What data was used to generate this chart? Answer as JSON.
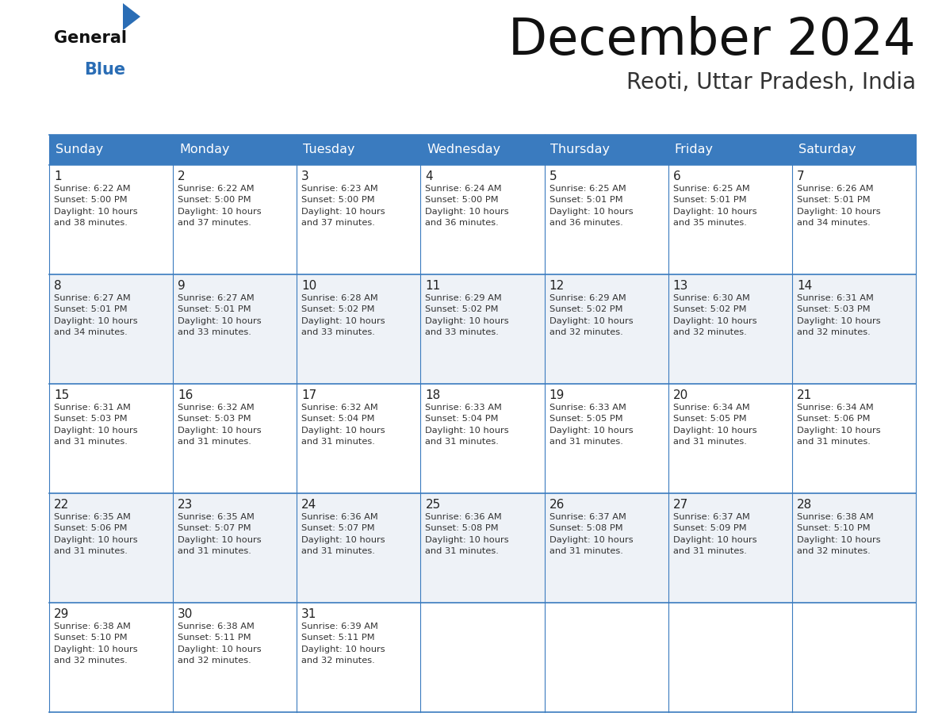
{
  "title": "December 2024",
  "subtitle": "Reoti, Uttar Pradesh, India",
  "days_of_week": [
    "Sunday",
    "Monday",
    "Tuesday",
    "Wednesday",
    "Thursday",
    "Friday",
    "Saturday"
  ],
  "header_bg_color": "#3a7bbf",
  "header_text_color": "#ffffff",
  "cell_bg_even": "#ffffff",
  "cell_bg_odd": "#eef2f7",
  "cell_border_color": "#3a7bbf",
  "day_number_color": "#222222",
  "cell_text_color": "#333333",
  "title_color": "#111111",
  "subtitle_color": "#333333",
  "logo_general_color": "#111111",
  "logo_blue_color": "#2a6db5",
  "calendar_data": [
    {
      "day": 1,
      "col": 0,
      "row": 0,
      "sunrise": "6:22 AM",
      "sunset": "5:00 PM",
      "daylight_hours": 10,
      "daylight_minutes": 38
    },
    {
      "day": 2,
      "col": 1,
      "row": 0,
      "sunrise": "6:22 AM",
      "sunset": "5:00 PM",
      "daylight_hours": 10,
      "daylight_minutes": 37
    },
    {
      "day": 3,
      "col": 2,
      "row": 0,
      "sunrise": "6:23 AM",
      "sunset": "5:00 PM",
      "daylight_hours": 10,
      "daylight_minutes": 37
    },
    {
      "day": 4,
      "col": 3,
      "row": 0,
      "sunrise": "6:24 AM",
      "sunset": "5:00 PM",
      "daylight_hours": 10,
      "daylight_minutes": 36
    },
    {
      "day": 5,
      "col": 4,
      "row": 0,
      "sunrise": "6:25 AM",
      "sunset": "5:01 PM",
      "daylight_hours": 10,
      "daylight_minutes": 36
    },
    {
      "day": 6,
      "col": 5,
      "row": 0,
      "sunrise": "6:25 AM",
      "sunset": "5:01 PM",
      "daylight_hours": 10,
      "daylight_minutes": 35
    },
    {
      "day": 7,
      "col": 6,
      "row": 0,
      "sunrise": "6:26 AM",
      "sunset": "5:01 PM",
      "daylight_hours": 10,
      "daylight_minutes": 34
    },
    {
      "day": 8,
      "col": 0,
      "row": 1,
      "sunrise": "6:27 AM",
      "sunset": "5:01 PM",
      "daylight_hours": 10,
      "daylight_minutes": 34
    },
    {
      "day": 9,
      "col": 1,
      "row": 1,
      "sunrise": "6:27 AM",
      "sunset": "5:01 PM",
      "daylight_hours": 10,
      "daylight_minutes": 33
    },
    {
      "day": 10,
      "col": 2,
      "row": 1,
      "sunrise": "6:28 AM",
      "sunset": "5:02 PM",
      "daylight_hours": 10,
      "daylight_minutes": 33
    },
    {
      "day": 11,
      "col": 3,
      "row": 1,
      "sunrise": "6:29 AM",
      "sunset": "5:02 PM",
      "daylight_hours": 10,
      "daylight_minutes": 33
    },
    {
      "day": 12,
      "col": 4,
      "row": 1,
      "sunrise": "6:29 AM",
      "sunset": "5:02 PM",
      "daylight_hours": 10,
      "daylight_minutes": 32
    },
    {
      "day": 13,
      "col": 5,
      "row": 1,
      "sunrise": "6:30 AM",
      "sunset": "5:02 PM",
      "daylight_hours": 10,
      "daylight_minutes": 32
    },
    {
      "day": 14,
      "col": 6,
      "row": 1,
      "sunrise": "6:31 AM",
      "sunset": "5:03 PM",
      "daylight_hours": 10,
      "daylight_minutes": 32
    },
    {
      "day": 15,
      "col": 0,
      "row": 2,
      "sunrise": "6:31 AM",
      "sunset": "5:03 PM",
      "daylight_hours": 10,
      "daylight_minutes": 31
    },
    {
      "day": 16,
      "col": 1,
      "row": 2,
      "sunrise": "6:32 AM",
      "sunset": "5:03 PM",
      "daylight_hours": 10,
      "daylight_minutes": 31
    },
    {
      "day": 17,
      "col": 2,
      "row": 2,
      "sunrise": "6:32 AM",
      "sunset": "5:04 PM",
      "daylight_hours": 10,
      "daylight_minutes": 31
    },
    {
      "day": 18,
      "col": 3,
      "row": 2,
      "sunrise": "6:33 AM",
      "sunset": "5:04 PM",
      "daylight_hours": 10,
      "daylight_minutes": 31
    },
    {
      "day": 19,
      "col": 4,
      "row": 2,
      "sunrise": "6:33 AM",
      "sunset": "5:05 PM",
      "daylight_hours": 10,
      "daylight_minutes": 31
    },
    {
      "day": 20,
      "col": 5,
      "row": 2,
      "sunrise": "6:34 AM",
      "sunset": "5:05 PM",
      "daylight_hours": 10,
      "daylight_minutes": 31
    },
    {
      "day": 21,
      "col": 6,
      "row": 2,
      "sunrise": "6:34 AM",
      "sunset": "5:06 PM",
      "daylight_hours": 10,
      "daylight_minutes": 31
    },
    {
      "day": 22,
      "col": 0,
      "row": 3,
      "sunrise": "6:35 AM",
      "sunset": "5:06 PM",
      "daylight_hours": 10,
      "daylight_minutes": 31
    },
    {
      "day": 23,
      "col": 1,
      "row": 3,
      "sunrise": "6:35 AM",
      "sunset": "5:07 PM",
      "daylight_hours": 10,
      "daylight_minutes": 31
    },
    {
      "day": 24,
      "col": 2,
      "row": 3,
      "sunrise": "6:36 AM",
      "sunset": "5:07 PM",
      "daylight_hours": 10,
      "daylight_minutes": 31
    },
    {
      "day": 25,
      "col": 3,
      "row": 3,
      "sunrise": "6:36 AM",
      "sunset": "5:08 PM",
      "daylight_hours": 10,
      "daylight_minutes": 31
    },
    {
      "day": 26,
      "col": 4,
      "row": 3,
      "sunrise": "6:37 AM",
      "sunset": "5:08 PM",
      "daylight_hours": 10,
      "daylight_minutes": 31
    },
    {
      "day": 27,
      "col": 5,
      "row": 3,
      "sunrise": "6:37 AM",
      "sunset": "5:09 PM",
      "daylight_hours": 10,
      "daylight_minutes": 31
    },
    {
      "day": 28,
      "col": 6,
      "row": 3,
      "sunrise": "6:38 AM",
      "sunset": "5:10 PM",
      "daylight_hours": 10,
      "daylight_minutes": 32
    },
    {
      "day": 29,
      "col": 0,
      "row": 4,
      "sunrise": "6:38 AM",
      "sunset": "5:10 PM",
      "daylight_hours": 10,
      "daylight_minutes": 32
    },
    {
      "day": 30,
      "col": 1,
      "row": 4,
      "sunrise": "6:38 AM",
      "sunset": "5:11 PM",
      "daylight_hours": 10,
      "daylight_minutes": 32
    },
    {
      "day": 31,
      "col": 2,
      "row": 4,
      "sunrise": "6:39 AM",
      "sunset": "5:11 PM",
      "daylight_hours": 10,
      "daylight_minutes": 32
    }
  ]
}
